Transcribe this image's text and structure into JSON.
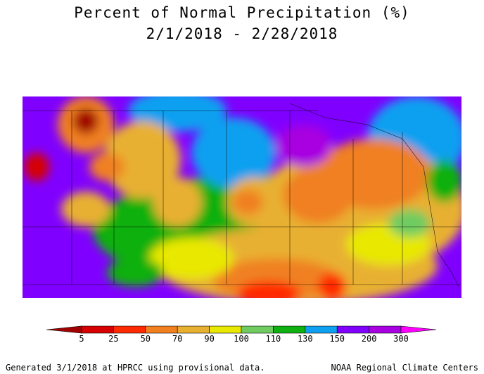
{
  "title": {
    "line1": "Percent of Normal Precipitation (%)",
    "line2": "2/1/2018 - 2/28/2018"
  },
  "legend": {
    "labels": [
      "5",
      "25",
      "50",
      "70",
      "90",
      "100",
      "110",
      "130",
      "150",
      "200",
      "300"
    ],
    "colors": [
      "#a00000",
      "#d60000",
      "#ff2a00",
      "#f08020",
      "#e8b030",
      "#e8e800",
      "#70cc60",
      "#10b010",
      "#10a0f0",
      "#8000ff",
      "#a800e0",
      "#ff00ff"
    ]
  },
  "footer": {
    "left": "Generated 3/1/2018 at HPRCC using provisional data.",
    "right": "NOAA Regional Climate Centers"
  }
}
